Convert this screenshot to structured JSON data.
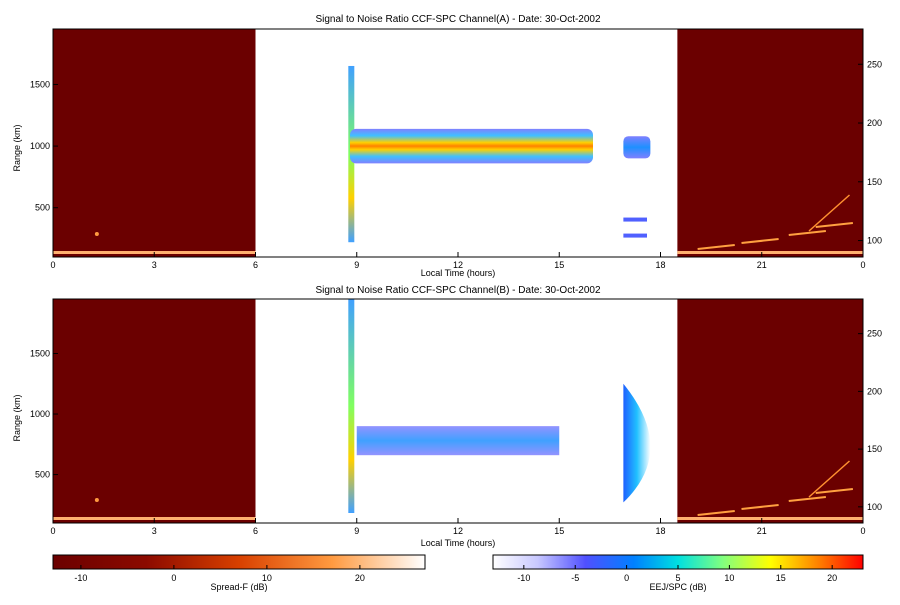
{
  "chart_data": [
    {
      "type": "heatmap",
      "title": "Signal to Noise Ratio CCF-SPC Channel(A) - Date: 30-Oct-2002",
      "xlabel": "Local Time (hours)",
      "ylabel": "Range (km)",
      "x_ticks": [
        "0",
        "3",
        "6",
        "9",
        "12",
        "15",
        "18",
        "21",
        "0"
      ],
      "y_ticks": [
        "500",
        "1000",
        "1500"
      ],
      "y2_ticks": [
        "100",
        "150",
        "200",
        "250"
      ],
      "ylim": [
        100,
        1950
      ],
      "y2lim": [
        86,
        280
      ],
      "night_spans": [
        [
          0,
          6
        ],
        [
          18.5,
          24
        ]
      ],
      "eej_band": {
        "center_km": 1000,
        "start_h": 8.8,
        "end_h": 16.0
      },
      "grid": false
    },
    {
      "type": "heatmap",
      "title": "Signal to Noise Ratio CCF-SPC Channel(B) - Date: 30-Oct-2002",
      "xlabel": "Local Time (hours)",
      "ylabel": "Range (km)",
      "x_ticks": [
        "0",
        "3",
        "6",
        "9",
        "12",
        "15",
        "18",
        "21",
        "0"
      ],
      "y_ticks": [
        "500",
        "1000",
        "1500"
      ],
      "y2_ticks": [
        "100",
        "150",
        "200",
        "250"
      ],
      "ylim": [
        100,
        1950
      ],
      "y2lim": [
        86,
        280
      ],
      "night_spans": [
        [
          0,
          6
        ],
        [
          18.5,
          24
        ]
      ],
      "eej_band": {
        "center_km": 780,
        "start_h": 9.0,
        "end_h": 15.0
      },
      "grid": false
    }
  ],
  "colorbars": [
    {
      "label": "Spread-F (dB)",
      "ticks": [
        "-10",
        "0",
        "10",
        "20"
      ],
      "range": [
        -13,
        27
      ]
    },
    {
      "label": "EEJ/SPC (dB)",
      "ticks": [
        "-10",
        "-5",
        "0",
        "5",
        "10",
        "15",
        "20"
      ],
      "range": [
        -13,
        23
      ]
    }
  ],
  "colors": {
    "night_bg": "#6b0000",
    "axis": "#000000"
  }
}
